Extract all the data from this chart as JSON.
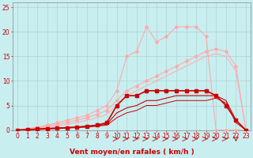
{
  "xlabel": "Vent moyen/en rafales ( km/h )",
  "xlim": [
    -0.5,
    23.5
  ],
  "ylim": [
    0,
    26
  ],
  "xticks": [
    0,
    1,
    2,
    3,
    4,
    5,
    6,
    7,
    8,
    9,
    10,
    11,
    12,
    13,
    14,
    15,
    16,
    17,
    18,
    19,
    20,
    21,
    22,
    23
  ],
  "yticks": [
    0,
    5,
    10,
    15,
    20,
    25
  ],
  "bg_color": "#c8eef0",
  "grid_color": "#aacccc",
  "line_pink_upper_x": [
    0,
    1,
    2,
    3,
    4,
    5,
    6,
    7,
    8,
    9,
    10,
    11,
    12,
    13,
    14,
    15,
    16,
    17,
    18,
    19,
    20,
    21,
    22,
    23
  ],
  "line_pink_upper_y": [
    0,
    0.3,
    0.6,
    1.0,
    1.5,
    2.0,
    2.5,
    3.0,
    4.0,
    5.0,
    8,
    15,
    16,
    21,
    18,
    19,
    21,
    21,
    21,
    19,
    0,
    0,
    0,
    0
  ],
  "line_pink_mid_x": [
    0,
    1,
    2,
    3,
    4,
    5,
    6,
    7,
    8,
    9,
    10,
    11,
    12,
    13,
    14,
    15,
    16,
    17,
    18,
    19,
    20,
    21,
    22,
    23
  ],
  "line_pink_mid_y": [
    0,
    0.2,
    0.4,
    0.8,
    1.2,
    1.6,
    2.0,
    2.5,
    3.2,
    4.0,
    6,
    8,
    9,
    10,
    11,
    12,
    13,
    14,
    15,
    16,
    16.5,
    16,
    13,
    0
  ],
  "line_pink_lower_x": [
    0,
    1,
    2,
    3,
    4,
    5,
    6,
    7,
    8,
    9,
    10,
    11,
    12,
    13,
    14,
    15,
    16,
    17,
    18,
    19,
    20,
    21,
    22,
    23
  ],
  "line_pink_lower_y": [
    0,
    0.1,
    0.3,
    0.6,
    0.9,
    1.2,
    1.5,
    2.0,
    2.5,
    3.2,
    5,
    7,
    8,
    9,
    10,
    11,
    12,
    13,
    14,
    15,
    15.5,
    15,
    12,
    0
  ],
  "line_red_upper_x": [
    0,
    1,
    2,
    3,
    4,
    5,
    6,
    7,
    8,
    9,
    10,
    11,
    12,
    13,
    14,
    15,
    16,
    17,
    18,
    19,
    20,
    21,
    22,
    23
  ],
  "line_red_upper_y": [
    0,
    0.1,
    0.2,
    0.3,
    0.4,
    0.5,
    0.6,
    0.8,
    1.0,
    1.5,
    5,
    7,
    7,
    8,
    8,
    8,
    8,
    8,
    8,
    8,
    7,
    5,
    2,
    0
  ],
  "line_red_mid_x": [
    0,
    1,
    2,
    3,
    4,
    5,
    6,
    7,
    8,
    9,
    10,
    11,
    12,
    13,
    14,
    15,
    16,
    17,
    18,
    19,
    20,
    21,
    22,
    23
  ],
  "line_red_mid_y": [
    0,
    0.1,
    0.2,
    0.3,
    0.4,
    0.5,
    0.6,
    0.7,
    0.9,
    1.2,
    3.5,
    4.5,
    5,
    6,
    6,
    6.5,
    7,
    7,
    7,
    7,
    7,
    6,
    2,
    0
  ],
  "line_red_lower_x": [
    0,
    1,
    2,
    3,
    4,
    5,
    6,
    7,
    8,
    9,
    10,
    11,
    12,
    13,
    14,
    15,
    16,
    17,
    18,
    19,
    20,
    21,
    22,
    23
  ],
  "line_red_lower_y": [
    0,
    0.05,
    0.1,
    0.2,
    0.3,
    0.4,
    0.5,
    0.6,
    0.8,
    1.0,
    2.5,
    3.5,
    4,
    5,
    5,
    5.5,
    6,
    6,
    6,
    6,
    6.5,
    5.5,
    1.5,
    0
  ],
  "pink_color": "#ffaaaa",
  "red_color": "#cc0000",
  "red_dark": "#aa0000",
  "xlabel_color": "#cc0000",
  "xlabel_fontsize": 6.5,
  "tick_fontsize": 5.5,
  "tick_color": "#cc0000"
}
